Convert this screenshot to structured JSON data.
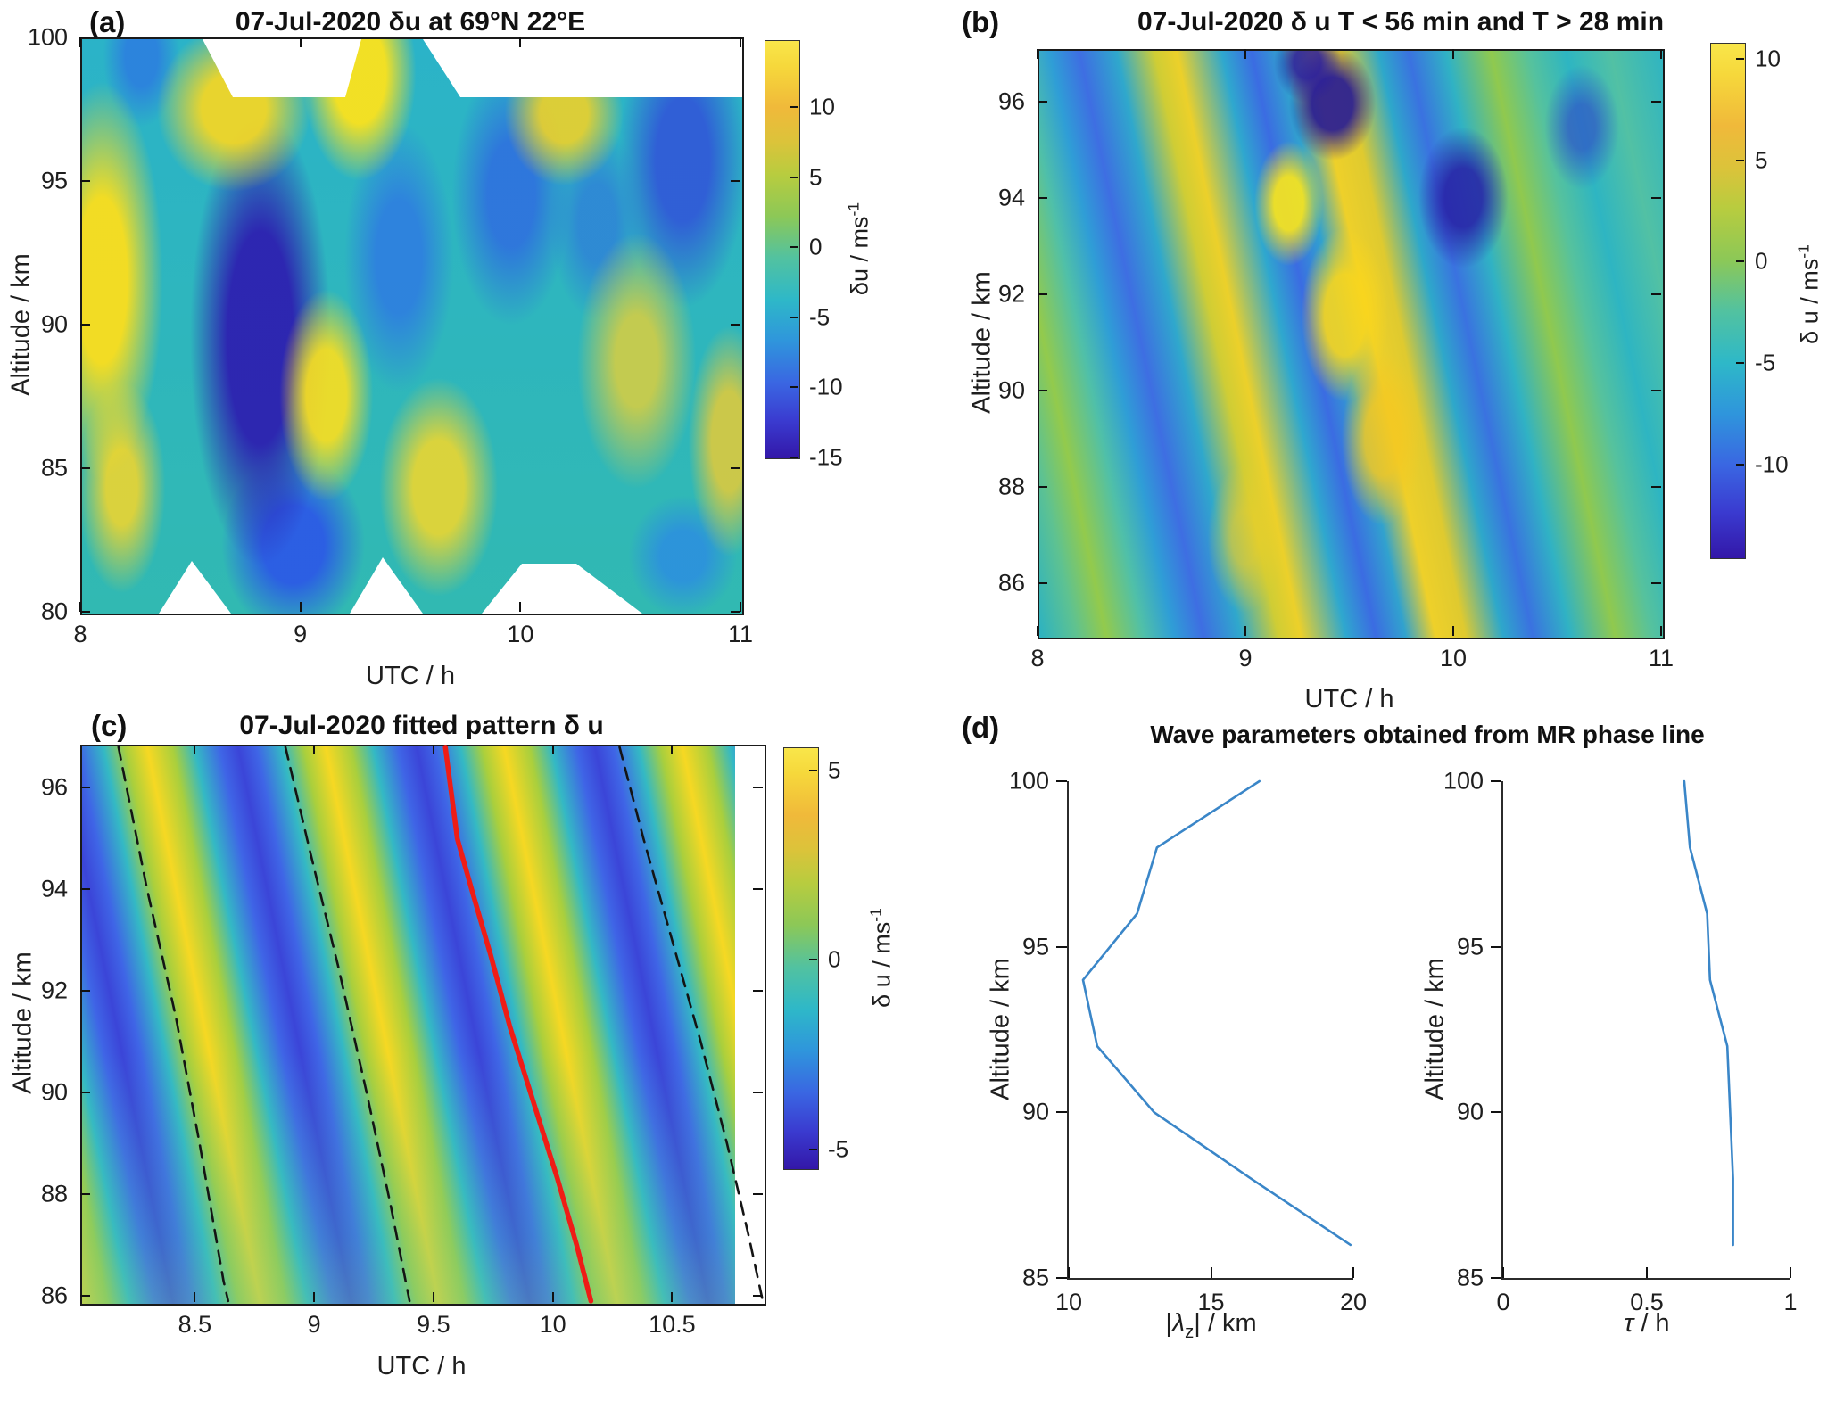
{
  "chart_data": [
    {
      "id": "a",
      "label": "(a)",
      "type": "heatmap",
      "title": "07-Jul-2020 δu at 69°N 22°E",
      "xlabel": "UTC / h",
      "ylabel": "Altitude / km",
      "x_ticks": [
        8,
        9,
        10,
        11
      ],
      "y_ticks": [
        100,
        95,
        90,
        85,
        80
      ],
      "x_range": [
        8,
        11
      ],
      "y_range": [
        80,
        100
      ],
      "colorbar": {
        "ticks": [
          10,
          5,
          0,
          -5,
          -10,
          -15
        ],
        "range": [
          -15,
          14.8
        ],
        "label": "δu / ms",
        "label_sup": "-1"
      }
    },
    {
      "id": "b",
      "label": "(b)",
      "type": "heatmap",
      "title": "07-Jul-2020 δ u T < 56 min and T > 28 min",
      "xlabel": "UTC / h",
      "ylabel": "Altitude / km",
      "x_ticks": [
        8,
        9,
        10,
        11
      ],
      "y_ticks": [
        96,
        94,
        92,
        90,
        88,
        86
      ],
      "x_range": [
        8,
        11
      ],
      "y_range": [
        84.9,
        97.1
      ],
      "colorbar": {
        "ticks": [
          10,
          5,
          0,
          -5,
          -10
        ],
        "range": [
          -14.6,
          10.8
        ],
        "label": "δ u / ms",
        "label_sup": "-1"
      }
    },
    {
      "id": "c",
      "label": "(c)",
      "type": "heatmap",
      "title": "07-Jul-2020 fitted pattern δ u",
      "xlabel": "UTC / h",
      "ylabel": "Altitude / km",
      "x_ticks": [
        8.5,
        9,
        9.5,
        10,
        10.5
      ],
      "y_ticks": [
        96,
        94,
        92,
        90,
        88,
        86
      ],
      "x_range": [
        8.02,
        10.88
      ],
      "y_range": [
        85.88,
        96.85
      ],
      "colorbar": {
        "ticks": [
          5,
          0,
          -5
        ],
        "range": [
          -5.5,
          5.6
        ],
        "label": "δ u / ms",
        "label_sup": "-1"
      },
      "fit_line_color": "#ef1c16",
      "phase_lines": [
        {
          "style": "dashed",
          "points": [
            [
              8.18,
              96.8
            ],
            [
              8.3,
              94.0
            ],
            [
              8.42,
              91.5
            ],
            [
              8.52,
              89.0
            ],
            [
              8.62,
              86.3
            ],
            [
              8.64,
              85.9
            ]
          ]
        },
        {
          "style": "dashed",
          "points": [
            [
              8.88,
              96.8
            ],
            [
              8.98,
              94.8
            ],
            [
              9.1,
              92.5
            ],
            [
              9.22,
              90.0
            ],
            [
              9.32,
              87.8
            ],
            [
              9.4,
              85.9
            ]
          ]
        },
        {
          "style": "red",
          "points": [
            [
              9.55,
              96.8
            ],
            [
              9.6,
              95.0
            ],
            [
              9.66,
              94.0
            ],
            [
              9.74,
              92.7
            ],
            [
              9.82,
              91.3
            ],
            [
              9.92,
              89.8
            ],
            [
              10.02,
              88.3
            ],
            [
              10.1,
              87.0
            ],
            [
              10.16,
              85.9
            ]
          ]
        },
        {
          "style": "dashed",
          "points": [
            [
              10.28,
              96.8
            ],
            [
              10.38,
              95.0
            ],
            [
              10.5,
              93.0
            ],
            [
              10.62,
              91.0
            ],
            [
              10.73,
              89.0
            ],
            [
              10.82,
              87.2
            ],
            [
              10.88,
              85.9
            ]
          ]
        }
      ]
    },
    {
      "id": "d",
      "label": "(d)",
      "type": "line",
      "title": "Wave parameters obtained from MR phase line",
      "line_color": "#3a86c8",
      "subplots": [
        {
          "xlabel_parts": {
            "pre": "|",
            "sym": "λ",
            "sub": "z",
            "post": "| / km"
          },
          "ylabel": "Altitude / km",
          "x_ticks": [
            10,
            15,
            20
          ],
          "y_ticks": [
            100,
            95,
            90,
            85
          ],
          "x_range": [
            10,
            20
          ],
          "y_range": [
            85,
            100
          ],
          "series": {
            "name": "vertical-wavelength-profile",
            "points": [
              [
                19.9,
                86
              ],
              [
                16.4,
                88
              ],
              [
                13.0,
                90
              ],
              [
                11.0,
                92
              ],
              [
                10.5,
                94
              ],
              [
                12.4,
                96
              ],
              [
                13.1,
                98
              ],
              [
                16.7,
                100
              ]
            ]
          }
        },
        {
          "xlabel_parts": {
            "sym": "τ",
            "rest": " / h"
          },
          "ylabel": "Altitude / km",
          "x_ticks": [
            0,
            0.5,
            1
          ],
          "y_ticks": [
            100,
            95,
            90,
            85
          ],
          "x_range": [
            0,
            1
          ],
          "y_range": [
            85,
            100
          ],
          "series": {
            "name": "period-profile",
            "points": [
              [
                0.8,
                86
              ],
              [
                0.8,
                88
              ],
              [
                0.79,
                90
              ],
              [
                0.78,
                92
              ],
              [
                0.72,
                94
              ],
              [
                0.71,
                96
              ],
              [
                0.65,
                98
              ],
              [
                0.63,
                100
              ]
            ]
          }
        }
      ]
    }
  ]
}
